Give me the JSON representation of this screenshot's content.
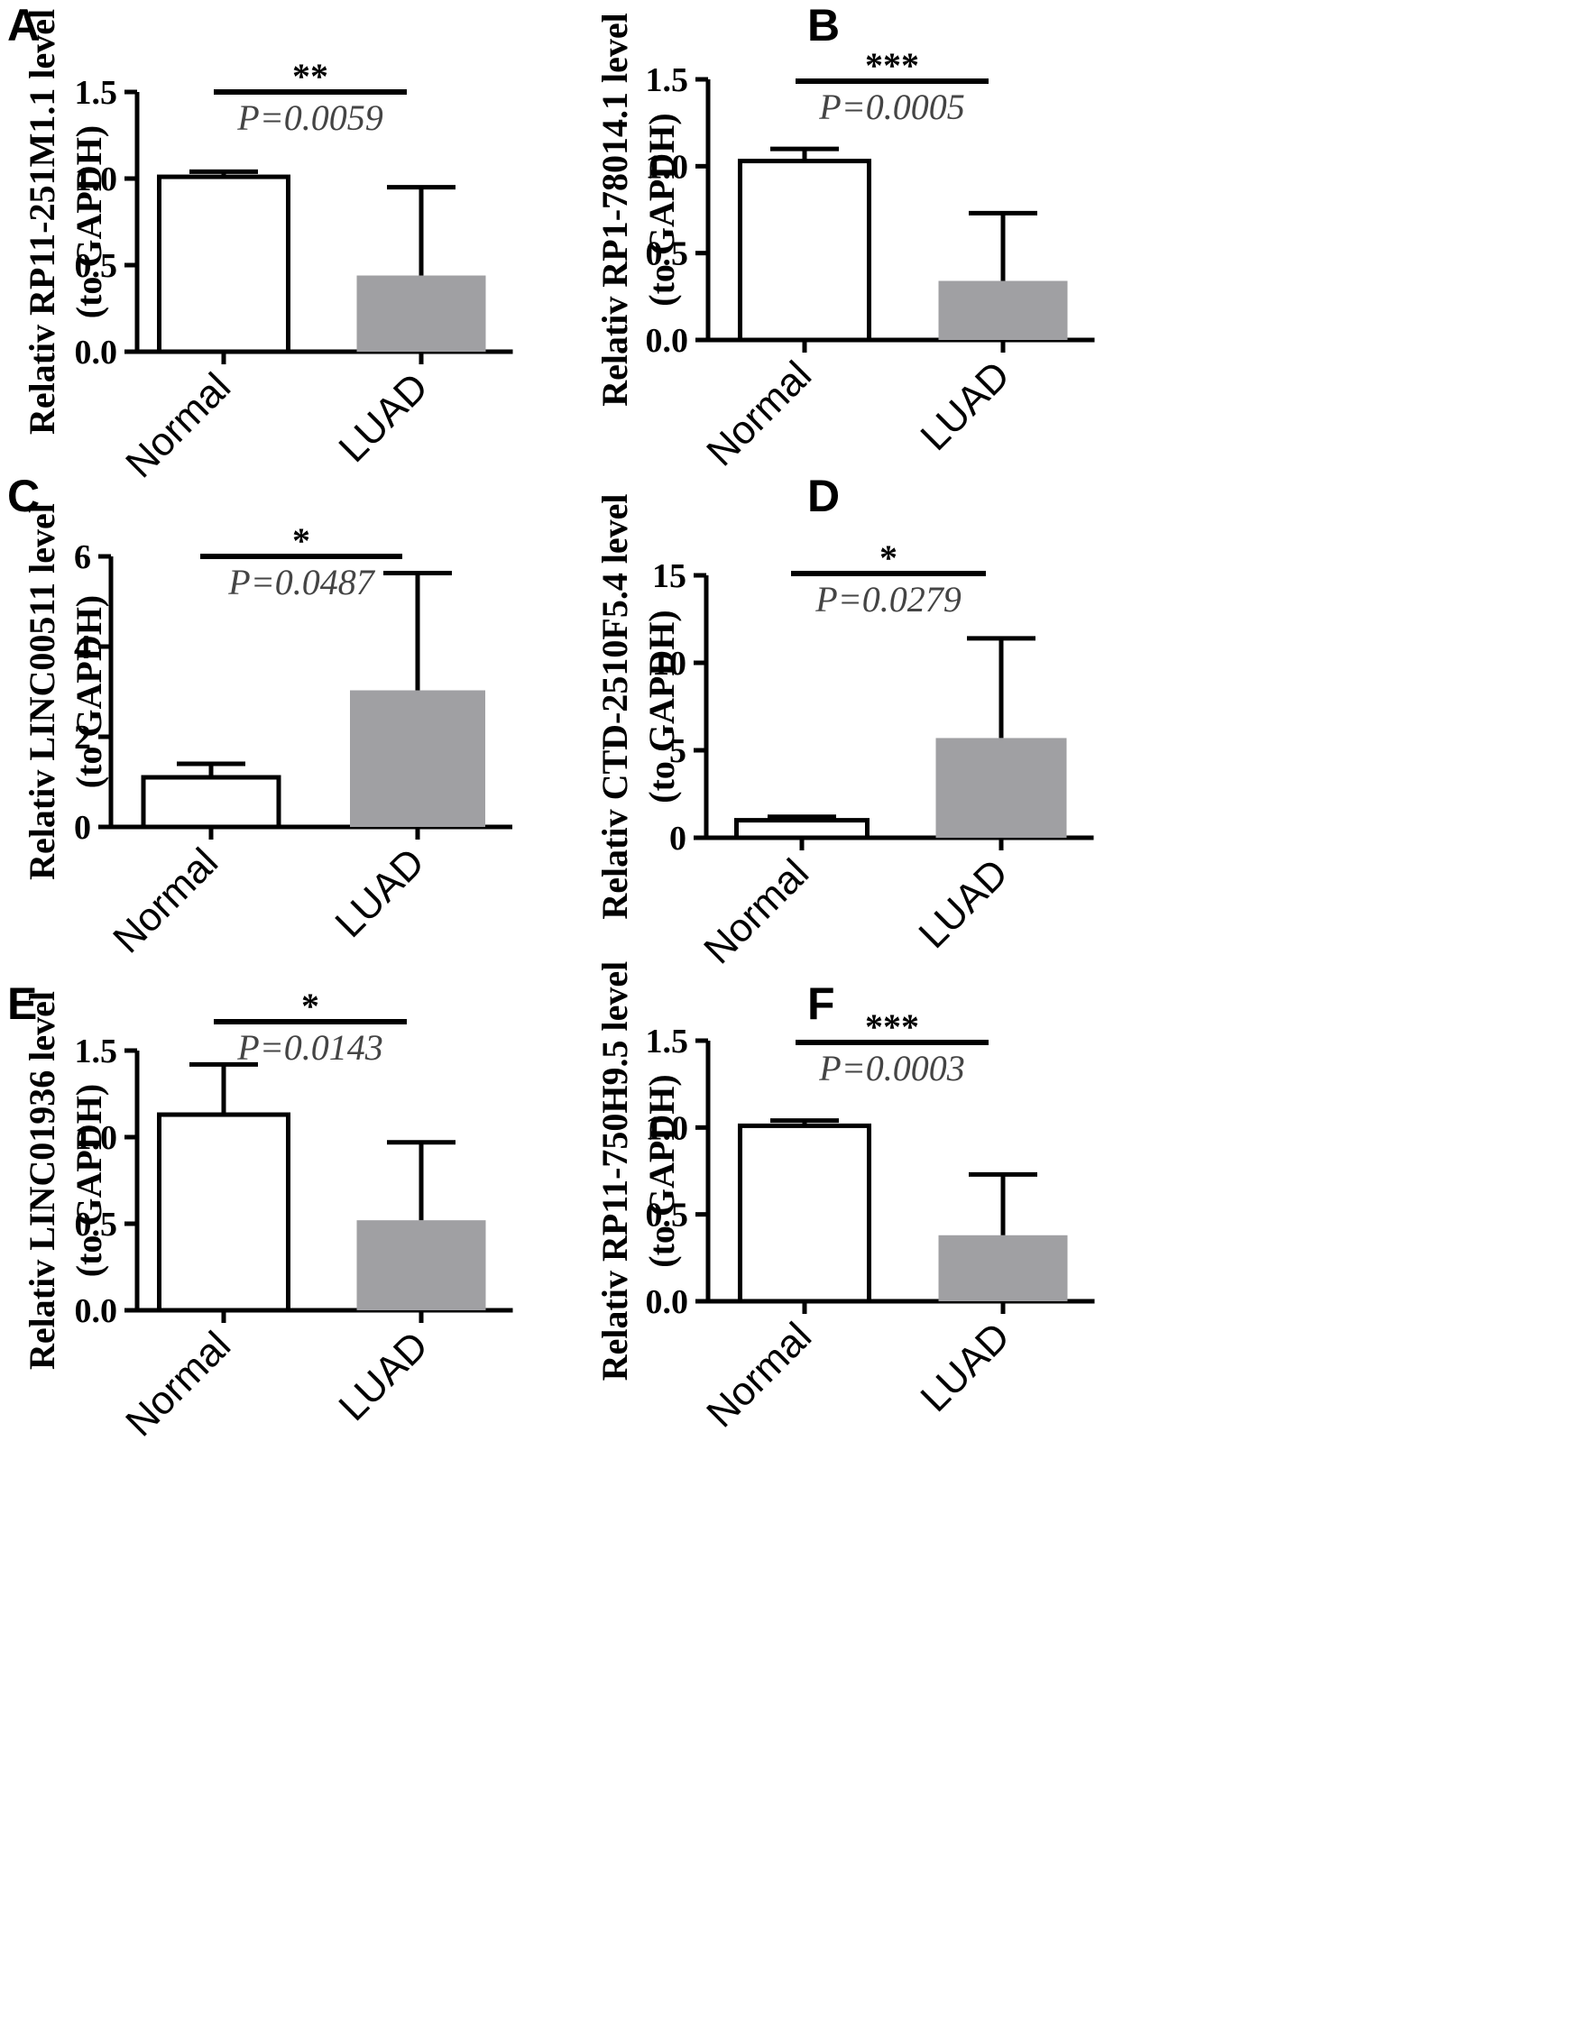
{
  "colors": {
    "normal_fill": "#ffffff",
    "luad_fill": "#a0a0a3",
    "stroke": "#000000"
  },
  "chart_data": [
    {
      "panel": "A",
      "type": "bar",
      "categories": [
        "Normal",
        "LUAD"
      ],
      "values": [
        1.01,
        0.44
      ],
      "error_upper": [
        1.04,
        0.95
      ],
      "ylabel": [
        "Relativ RP11-251M1.1 level",
        "(to GAPDH)"
      ],
      "ylim": [
        0,
        1.5
      ],
      "yticks": [
        "0.0",
        "0.5",
        "1.0",
        "1.5"
      ],
      "significance": "**",
      "p_value": "P=0.0059"
    },
    {
      "panel": "B",
      "type": "bar",
      "categories": [
        "Normal",
        "LUAD"
      ],
      "values": [
        1.03,
        0.34
      ],
      "error_upper": [
        1.1,
        0.73
      ],
      "ylabel": [
        "Relativ RP1-78014.1 level",
        "(to GAPDH)"
      ],
      "ylim": [
        0,
        1.5
      ],
      "yticks": [
        "0.0",
        "0.5",
        "1.0",
        "1.5"
      ],
      "significance": "***",
      "p_value": "P=0.0005"
    },
    {
      "panel": "C",
      "type": "bar",
      "categories": [
        "Normal",
        "LUAD"
      ],
      "values": [
        1.1,
        3.03
      ],
      "error_upper": [
        1.4,
        5.63
      ],
      "ylabel": [
        "Relativ LINC00511 level",
        "(to GAPDH)"
      ],
      "ylim": [
        0,
        6
      ],
      "yticks": [
        "0",
        "2",
        "4",
        "6"
      ],
      "significance": "*",
      "p_value": "P=0.0487"
    },
    {
      "panel": "D",
      "type": "bar",
      "categories": [
        "Normal",
        "LUAD"
      ],
      "values": [
        1.0,
        5.7
      ],
      "error_upper": [
        1.2,
        11.4
      ],
      "ylabel": [
        "Relativ CTD-2510F5.4 level",
        "(to GAPDH)"
      ],
      "ylim": [
        0,
        15
      ],
      "yticks": [
        "0",
        "5",
        "10",
        "15"
      ],
      "significance": "*",
      "p_value": "P=0.0279"
    },
    {
      "panel": "E",
      "type": "bar",
      "categories": [
        "Normal",
        "LUAD"
      ],
      "values": [
        1.13,
        0.52
      ],
      "error_upper": [
        1.42,
        0.97
      ],
      "ylabel": [
        "Relativ LINC01936 level",
        "(to GAPDH)"
      ],
      "ylim": [
        0,
        1.5
      ],
      "yticks": [
        "0.0",
        "0.5",
        "1.0",
        "1.5"
      ],
      "significance": "*",
      "p_value": "P=0.0143"
    },
    {
      "panel": "F",
      "type": "bar",
      "categories": [
        "Normal",
        "LUAD"
      ],
      "values": [
        1.01,
        0.38
      ],
      "error_upper": [
        1.04,
        0.73
      ],
      "ylabel": [
        "Relativ RP11-750H9.5 level",
        "(to GAPDH)"
      ],
      "ylim": [
        0,
        1.5
      ],
      "yticks": [
        "0.0",
        "0.5",
        "1.0",
        "1.5"
      ],
      "significance": "***",
      "p_value": "P=0.0003"
    }
  ]
}
